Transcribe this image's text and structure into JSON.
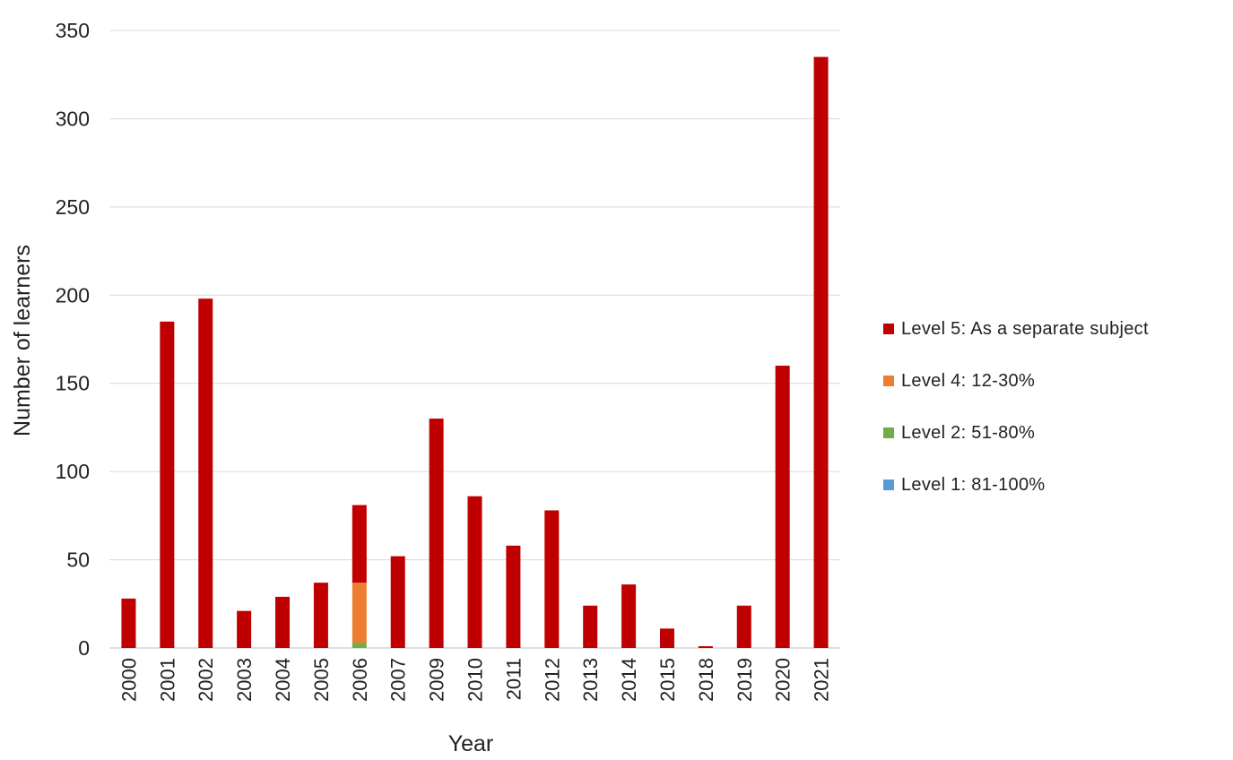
{
  "chart_data": {
    "type": "bar",
    "stacked": true,
    "xlabel": "Year",
    "ylabel": "Number of learners",
    "ylim": [
      0,
      350
    ],
    "yticks": [
      0,
      50,
      100,
      150,
      200,
      250,
      300,
      350
    ],
    "grid": true,
    "legend_position": "right",
    "categories": [
      "2000",
      "2001",
      "2002",
      "2003",
      "2004",
      "2005",
      "2006",
      "2007",
      "2009",
      "2010",
      "2011",
      "2012",
      "2013",
      "2014",
      "2015",
      "2018",
      "2019",
      "2020",
      "2021"
    ],
    "series": [
      {
        "name": "Level 1: 81-100%",
        "color": "#5B9BD5",
        "values": [
          0,
          0,
          0,
          0,
          0,
          0,
          0,
          0,
          0,
          0,
          0,
          0,
          0,
          0,
          0,
          0,
          0,
          0,
          0
        ]
      },
      {
        "name": "Level 2: 51-80%",
        "color": "#70AD47",
        "values": [
          0,
          0,
          0,
          0,
          0,
          0,
          3,
          0,
          0,
          0,
          0,
          0,
          0,
          0,
          0,
          0,
          0,
          0,
          0
        ]
      },
      {
        "name": "Level 4: 12-30%",
        "color": "#ED7D31",
        "values": [
          0,
          0,
          0,
          0,
          0,
          0,
          34,
          0,
          0,
          0,
          0,
          0,
          0,
          0,
          0,
          0,
          0,
          0,
          0
        ]
      },
      {
        "name": "Level 5: As a separate subject",
        "color": "#C00000",
        "values": [
          28,
          185,
          198,
          21,
          29,
          37,
          44,
          52,
          130,
          86,
          58,
          78,
          24,
          36,
          11,
          1,
          24,
          160,
          335
        ]
      }
    ],
    "legend_order": [
      3,
      2,
      1,
      0
    ]
  }
}
